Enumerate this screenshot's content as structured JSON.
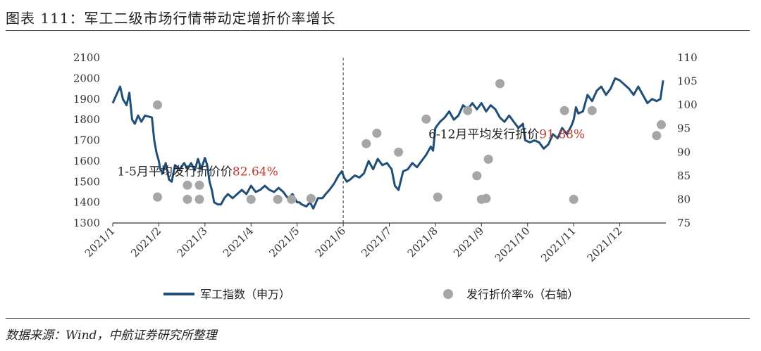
{
  "title": "图表 111：军工二级市场行情带动定增折价率增长",
  "source": "数据来源：Wind，中航证券研究所整理",
  "chart_data": {
    "type": "line",
    "left_axis": {
      "ticks": [
        1300,
        1400,
        1500,
        1600,
        1700,
        1800,
        1900,
        2000,
        2100
      ],
      "ylim": [
        1300,
        2100
      ]
    },
    "right_axis": {
      "ticks": [
        75,
        80,
        85,
        90,
        95,
        100,
        105,
        110
      ],
      "ylim": [
        75,
        110
      ]
    },
    "x_axis": {
      "xlim": [
        0,
        12
      ],
      "ticks": [
        {
          "x": 0,
          "label": "2021/1"
        },
        {
          "x": 1,
          "label": "2021/2"
        },
        {
          "x": 2,
          "label": "2021/3"
        },
        {
          "x": 3,
          "label": "2021/4"
        },
        {
          "x": 4,
          "label": "2021/5"
        },
        {
          "x": 5,
          "label": "2021/6"
        },
        {
          "x": 6,
          "label": "2021/7"
        },
        {
          "x": 7,
          "label": "2021/8"
        },
        {
          "x": 8,
          "label": "2021/9"
        },
        {
          "x": 9,
          "label": "2021/10"
        },
        {
          "x": 10,
          "label": "2021/11"
        },
        {
          "x": 11,
          "label": "2021/12"
        }
      ]
    },
    "divider_x": 5,
    "series": [
      {
        "name": "军工指数（申万）",
        "axis": "left",
        "color": "#1f4e79",
        "points": [
          [
            0.0,
            1880
          ],
          [
            0.08,
            1920
          ],
          [
            0.16,
            1960
          ],
          [
            0.22,
            1900
          ],
          [
            0.3,
            1870
          ],
          [
            0.36,
            1930
          ],
          [
            0.42,
            1800
          ],
          [
            0.48,
            1780
          ],
          [
            0.55,
            1820
          ],
          [
            0.62,
            1790
          ],
          [
            0.7,
            1820
          ],
          [
            0.78,
            1815
          ],
          [
            0.85,
            1810
          ],
          [
            0.9,
            1700
          ],
          [
            0.95,
            1640
          ],
          [
            1.0,
            1600
          ],
          [
            1.03,
            1560
          ],
          [
            1.08,
            1540
          ],
          [
            1.15,
            1590
          ],
          [
            1.22,
            1510
          ],
          [
            1.28,
            1500
          ],
          [
            1.35,
            1580
          ],
          [
            1.45,
            1560
          ],
          [
            1.55,
            1590
          ],
          [
            1.62,
            1560
          ],
          [
            1.7,
            1590
          ],
          [
            1.78,
            1555
          ],
          [
            1.85,
            1610
          ],
          [
            1.92,
            1560
          ],
          [
            2.0,
            1615
          ],
          [
            2.05,
            1580
          ],
          [
            2.1,
            1500
          ],
          [
            2.15,
            1460
          ],
          [
            2.2,
            1400
          ],
          [
            2.28,
            1390
          ],
          [
            2.35,
            1390
          ],
          [
            2.42,
            1420
          ],
          [
            2.5,
            1440
          ],
          [
            2.6,
            1420
          ],
          [
            2.7,
            1440
          ],
          [
            2.8,
            1460
          ],
          [
            2.9,
            1440
          ],
          [
            3.0,
            1480
          ],
          [
            3.1,
            1450
          ],
          [
            3.2,
            1460
          ],
          [
            3.3,
            1480
          ],
          [
            3.4,
            1460
          ],
          [
            3.5,
            1450
          ],
          [
            3.6,
            1470
          ],
          [
            3.7,
            1450
          ],
          [
            3.8,
            1420
          ],
          [
            3.9,
            1440
          ],
          [
            4.0,
            1400
          ],
          [
            4.05,
            1400
          ],
          [
            4.1,
            1390
          ],
          [
            4.2,
            1380
          ],
          [
            4.28,
            1400
          ],
          [
            4.35,
            1370
          ],
          [
            4.45,
            1420
          ],
          [
            4.55,
            1420
          ],
          [
            4.62,
            1440
          ],
          [
            4.7,
            1460
          ],
          [
            4.8,
            1490
          ],
          [
            4.9,
            1530
          ],
          [
            4.97,
            1550
          ],
          [
            5.02,
            1520
          ],
          [
            5.08,
            1500
          ],
          [
            5.15,
            1510
          ],
          [
            5.25,
            1530
          ],
          [
            5.35,
            1520
          ],
          [
            5.45,
            1540
          ],
          [
            5.55,
            1600
          ],
          [
            5.65,
            1560
          ],
          [
            5.75,
            1610
          ],
          [
            5.85,
            1580
          ],
          [
            5.95,
            1590
          ],
          [
            6.05,
            1560
          ],
          [
            6.12,
            1480
          ],
          [
            6.2,
            1460
          ],
          [
            6.3,
            1550
          ],
          [
            6.4,
            1560
          ],
          [
            6.5,
            1590
          ],
          [
            6.6,
            1570
          ],
          [
            6.7,
            1600
          ],
          [
            6.8,
            1630
          ],
          [
            6.9,
            1670
          ],
          [
            6.95,
            1650
          ],
          [
            7.0,
            1760
          ],
          [
            7.1,
            1790
          ],
          [
            7.2,
            1810
          ],
          [
            7.3,
            1840
          ],
          [
            7.4,
            1800
          ],
          [
            7.5,
            1820
          ],
          [
            7.6,
            1870
          ],
          [
            7.7,
            1850
          ],
          [
            7.8,
            1880
          ],
          [
            7.9,
            1850
          ],
          [
            8.0,
            1880
          ],
          [
            8.1,
            1840
          ],
          [
            8.2,
            1870
          ],
          [
            8.3,
            1850
          ],
          [
            8.4,
            1810
          ],
          [
            8.5,
            1790
          ],
          [
            8.6,
            1820
          ],
          [
            8.7,
            1790
          ],
          [
            8.8,
            1760
          ],
          [
            8.9,
            1780
          ],
          [
            8.95,
            1700
          ],
          [
            9.05,
            1690
          ],
          [
            9.15,
            1700
          ],
          [
            9.25,
            1690
          ],
          [
            9.35,
            1660
          ],
          [
            9.45,
            1680
          ],
          [
            9.55,
            1730
          ],
          [
            9.65,
            1710
          ],
          [
            9.75,
            1760
          ],
          [
            9.85,
            1730
          ],
          [
            9.95,
            1770
          ],
          [
            10.0,
            1800
          ],
          [
            10.05,
            1860
          ],
          [
            10.1,
            1830
          ],
          [
            10.2,
            1840
          ],
          [
            10.3,
            1920
          ],
          [
            10.4,
            1890
          ],
          [
            10.5,
            1940
          ],
          [
            10.6,
            1960
          ],
          [
            10.7,
            1920
          ],
          [
            10.8,
            1950
          ],
          [
            10.9,
            2000
          ],
          [
            11.0,
            1990
          ],
          [
            11.1,
            1970
          ],
          [
            11.2,
            1950
          ],
          [
            11.3,
            1920
          ],
          [
            11.4,
            1960
          ],
          [
            11.5,
            1920
          ],
          [
            11.6,
            1880
          ],
          [
            11.7,
            1900
          ],
          [
            11.8,
            1890
          ],
          [
            11.88,
            1900
          ],
          [
            11.94,
            1990
          ]
        ]
      },
      {
        "name": "发行折价率%（右轴）",
        "axis": "right",
        "type": "scatter",
        "color": "#a6a6a6",
        "points": [
          [
            0.97,
            100
          ],
          [
            0.97,
            80.5
          ],
          [
            1.62,
            83
          ],
          [
            1.62,
            80
          ],
          [
            1.88,
            83
          ],
          [
            1.88,
            80
          ],
          [
            3.0,
            80
          ],
          [
            3.58,
            80
          ],
          [
            3.88,
            80
          ],
          [
            4.3,
            80.2
          ],
          [
            5.5,
            91.8
          ],
          [
            5.73,
            94
          ],
          [
            6.2,
            90
          ],
          [
            6.8,
            97
          ],
          [
            7.05,
            80.5
          ],
          [
            7.7,
            98.8
          ],
          [
            7.9,
            85
          ],
          [
            8.0,
            80
          ],
          [
            8.1,
            80.2
          ],
          [
            8.15,
            88.5
          ],
          [
            8.4,
            104.5
          ],
          [
            9.8,
            98.8
          ],
          [
            10.0,
            80
          ],
          [
            10.4,
            98.8
          ],
          [
            11.8,
            93.5
          ],
          [
            11.9,
            95.8
          ]
        ]
      }
    ],
    "annotations": [
      {
        "x": 0.1,
        "y": 1530,
        "text": "1-5月平均发行折价价",
        "value": "82.64%"
      },
      {
        "x": 6.85,
        "y": 1710,
        "text": "6-12月平均发行折价",
        "value": "91.88%"
      }
    ],
    "legend": {
      "position": "bottom"
    }
  }
}
